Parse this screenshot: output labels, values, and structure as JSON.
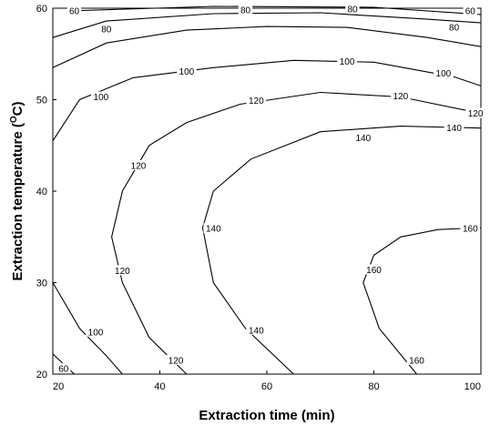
{
  "chart_data": {
    "type": "contour",
    "xlabel": "Extraction time (min)",
    "ylabel": "Extraction temperature (°C)",
    "ylabel_parts": [
      "Extraction temperature (",
      "O",
      "C)"
    ],
    "xlim": [
      20,
      100
    ],
    "ylim": [
      20,
      60
    ],
    "xticks": [
      20,
      40,
      60,
      80,
      100
    ],
    "yticks": [
      20,
      30,
      40,
      50,
      60
    ],
    "grid": false,
    "contours": [
      {
        "level": 60,
        "label": "60",
        "points": [
          [
            23,
            59.7
          ],
          [
            50,
            60.2
          ],
          [
            80,
            60.1
          ],
          [
            100,
            59.3
          ]
        ]
      },
      {
        "level": 60,
        "label": "60",
        "points": [
          [
            20,
            22.2
          ],
          [
            24,
            20
          ]
        ]
      },
      {
        "level": 80,
        "label": "80",
        "points": [
          [
            20,
            56.8
          ],
          [
            30,
            58.6
          ],
          [
            50,
            59.4
          ],
          [
            70,
            59.5
          ],
          [
            90,
            58.8
          ],
          [
            100,
            58.4
          ]
        ]
      },
      {
        "level": 80,
        "label": "80",
        "points": [
          [
            20,
            53.5
          ],
          [
            30,
            56.2
          ],
          [
            45,
            57.6
          ],
          [
            60,
            58
          ],
          [
            75,
            57.9
          ],
          [
            90,
            56.8
          ],
          [
            100,
            55.8
          ]
        ]
      },
      {
        "level": 100,
        "label": "100",
        "points": [
          [
            20,
            45.5
          ],
          [
            25,
            50
          ],
          [
            35,
            52.4
          ],
          [
            50,
            53.5
          ],
          [
            65,
            54.3
          ],
          [
            80,
            54.1
          ],
          [
            95,
            52.5
          ],
          [
            100,
            51.5
          ]
        ]
      },
      {
        "level": 100,
        "label": "100",
        "points": [
          [
            20,
            30
          ],
          [
            25,
            25
          ],
          [
            30,
            22
          ],
          [
            33,
            20
          ]
        ]
      },
      {
        "level": 120,
        "label": "120",
        "points": [
          [
            45,
            20
          ],
          [
            38,
            24
          ],
          [
            33,
            30
          ],
          [
            31,
            35
          ],
          [
            33,
            40
          ],
          [
            38,
            45
          ],
          [
            45,
            47.5
          ],
          [
            55,
            49.5
          ],
          [
            70,
            50.8
          ],
          [
            85,
            50.3
          ],
          [
            100,
            48.5
          ]
        ]
      },
      {
        "level": 140,
        "label": "140",
        "points": [
          [
            65,
            20
          ],
          [
            56,
            25
          ],
          [
            50,
            30
          ],
          [
            48,
            36
          ],
          [
            50,
            40
          ],
          [
            57,
            43.5
          ],
          [
            70,
            46.5
          ],
          [
            85,
            47.1
          ],
          [
            100,
            46.9
          ]
        ]
      },
      {
        "level": 160,
        "label": "160",
        "points": [
          [
            88,
            20
          ],
          [
            81,
            25
          ],
          [
            78,
            30
          ],
          [
            80,
            33
          ],
          [
            85,
            35
          ],
          [
            92,
            35.8
          ],
          [
            100,
            36
          ]
        ]
      }
    ],
    "contour_labels": [
      {
        "text": "60",
        "x": 24,
        "y": 59.7
      },
      {
        "text": "60",
        "x": 98,
        "y": 59.7
      },
      {
        "text": "60",
        "x": 22,
        "y": 20.6
      },
      {
        "text": "80",
        "x": 30,
        "y": 57.7
      },
      {
        "text": "80",
        "x": 56,
        "y": 59.8
      },
      {
        "text": "80",
        "x": 76,
        "y": 59.9
      },
      {
        "text": "80",
        "x": 95,
        "y": 57.9
      },
      {
        "text": "100",
        "x": 29,
        "y": 50.3
      },
      {
        "text": "100",
        "x": 45,
        "y": 53.1
      },
      {
        "text": "100",
        "x": 75,
        "y": 54.2
      },
      {
        "text": "100",
        "x": 93,
        "y": 52.9
      },
      {
        "text": "100",
        "x": 28,
        "y": 24.6
      },
      {
        "text": "120",
        "x": 58,
        "y": 49.9
      },
      {
        "text": "120",
        "x": 85,
        "y": 50.4
      },
      {
        "text": "120",
        "x": 99,
        "y": 48.5
      },
      {
        "text": "120",
        "x": 36,
        "y": 42.8
      },
      {
        "text": "120",
        "x": 33,
        "y": 31.3
      },
      {
        "text": "120",
        "x": 43,
        "y": 21.5
      },
      {
        "text": "140",
        "x": 78,
        "y": 45.8
      },
      {
        "text": "140",
        "x": 95,
        "y": 46.9
      },
      {
        "text": "140",
        "x": 50,
        "y": 35.9
      },
      {
        "text": "140",
        "x": 58,
        "y": 24.8
      },
      {
        "text": "160",
        "x": 98,
        "y": 35.9
      },
      {
        "text": "160",
        "x": 80,
        "y": 31.4
      },
      {
        "text": "160",
        "x": 88,
        "y": 21.5
      }
    ]
  }
}
